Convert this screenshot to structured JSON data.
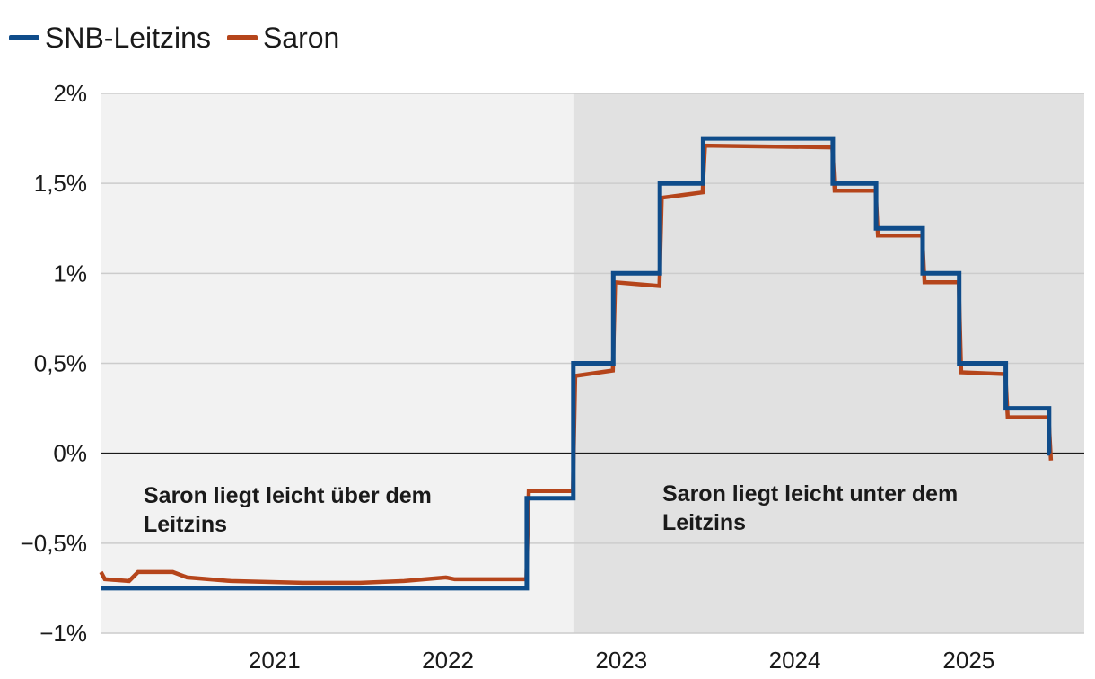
{
  "chart_data": {
    "type": "line",
    "title": "",
    "xlabel": "",
    "ylabel": "",
    "ylim": [
      -1,
      2
    ],
    "y_ticks": [
      {
        "value": -1,
        "label": "−1%"
      },
      {
        "value": -0.5,
        "label": "−0,5%"
      },
      {
        "value": 0,
        "label": "0%"
      },
      {
        "value": 0.5,
        "label": "0,5%"
      },
      {
        "value": 1,
        "label": "1%"
      },
      {
        "value": 1.5,
        "label": "1,5%"
      },
      {
        "value": 2,
        "label": "2%"
      }
    ],
    "xlim": [
      "2020-01-01",
      "2025-09-01"
    ],
    "x_ticks": [
      {
        "value": "2021-01-01",
        "label": "2021"
      },
      {
        "value": "2022-01-01",
        "label": "2022"
      },
      {
        "value": "2023-01-01",
        "label": "2023"
      },
      {
        "value": "2024-01-01",
        "label": "2024"
      },
      {
        "value": "2025-01-01",
        "label": "2025"
      }
    ],
    "grid": true,
    "legend": "top-left",
    "shaded_regions": [
      {
        "from": "2020-01-01",
        "to": "2022-09-22",
        "color": "#f2f2f2",
        "label": "Saron liegt leicht über dem Leitzins",
        "label_lines": [
          "Saron liegt leicht über dem",
          "Leitzins"
        ]
      },
      {
        "from": "2022-09-22",
        "to": "2025-09-01",
        "color": "#e1e1e1",
        "label": "Saron liegt leicht unter dem Leitzins",
        "label_lines": [
          "Saron liegt leicht unter dem",
          "Leitzins"
        ]
      }
    ],
    "series": [
      {
        "name": "SNB-Leitzins",
        "color": "#0f4c8a",
        "step": true,
        "points": [
          {
            "x": "2020-01-02",
            "y": -0.75
          },
          {
            "x": "2022-06-16",
            "y": -0.25
          },
          {
            "x": "2022-09-22",
            "y": 0.5
          },
          {
            "x": "2022-12-15",
            "y": 1.0
          },
          {
            "x": "2023-03-23",
            "y": 1.5
          },
          {
            "x": "2023-06-22",
            "y": 1.75
          },
          {
            "x": "2024-03-21",
            "y": 1.5
          },
          {
            "x": "2024-06-20",
            "y": 1.25
          },
          {
            "x": "2024-09-26",
            "y": 1.0
          },
          {
            "x": "2024-12-12",
            "y": 0.5
          },
          {
            "x": "2025-03-20",
            "y": 0.25
          },
          {
            "x": "2025-06-19",
            "y": 0.0
          }
        ]
      },
      {
        "name": "Saron",
        "color": "#b5451b",
        "points": [
          {
            "x": "2020-01-02",
            "y": -0.66
          },
          {
            "x": "2020-01-10",
            "y": -0.7
          },
          {
            "x": "2020-03-01",
            "y": -0.71
          },
          {
            "x": "2020-03-20",
            "y": -0.66
          },
          {
            "x": "2020-06-01",
            "y": -0.66
          },
          {
            "x": "2020-07-01",
            "y": -0.69
          },
          {
            "x": "2020-10-01",
            "y": -0.71
          },
          {
            "x": "2021-03-01",
            "y": -0.72
          },
          {
            "x": "2021-07-01",
            "y": -0.72
          },
          {
            "x": "2021-10-01",
            "y": -0.71
          },
          {
            "x": "2021-12-28",
            "y": -0.69
          },
          {
            "x": "2022-01-15",
            "y": -0.7
          },
          {
            "x": "2022-03-01",
            "y": -0.7
          },
          {
            "x": "2022-06-15",
            "y": -0.7
          },
          {
            "x": "2022-06-20",
            "y": -0.21
          },
          {
            "x": "2022-09-21",
            "y": -0.21
          },
          {
            "x": "2022-09-26",
            "y": 0.43
          },
          {
            "x": "2022-12-14",
            "y": 0.46
          },
          {
            "x": "2022-12-19",
            "y": 0.95
          },
          {
            "x": "2023-03-22",
            "y": 0.93
          },
          {
            "x": "2023-03-27",
            "y": 1.42
          },
          {
            "x": "2023-06-21",
            "y": 1.45
          },
          {
            "x": "2023-06-26",
            "y": 1.71
          },
          {
            "x": "2024-03-20",
            "y": 1.7
          },
          {
            "x": "2024-03-25",
            "y": 1.46
          },
          {
            "x": "2024-06-19",
            "y": 1.46
          },
          {
            "x": "2024-06-24",
            "y": 1.21
          },
          {
            "x": "2024-09-25",
            "y": 1.21
          },
          {
            "x": "2024-09-30",
            "y": 0.95
          },
          {
            "x": "2024-12-11",
            "y": 0.95
          },
          {
            "x": "2024-12-16",
            "y": 0.45
          },
          {
            "x": "2025-03-19",
            "y": 0.44
          },
          {
            "x": "2025-03-24",
            "y": 0.2
          },
          {
            "x": "2025-06-18",
            "y": 0.2
          },
          {
            "x": "2025-06-23",
            "y": -0.04
          }
        ]
      }
    ]
  }
}
